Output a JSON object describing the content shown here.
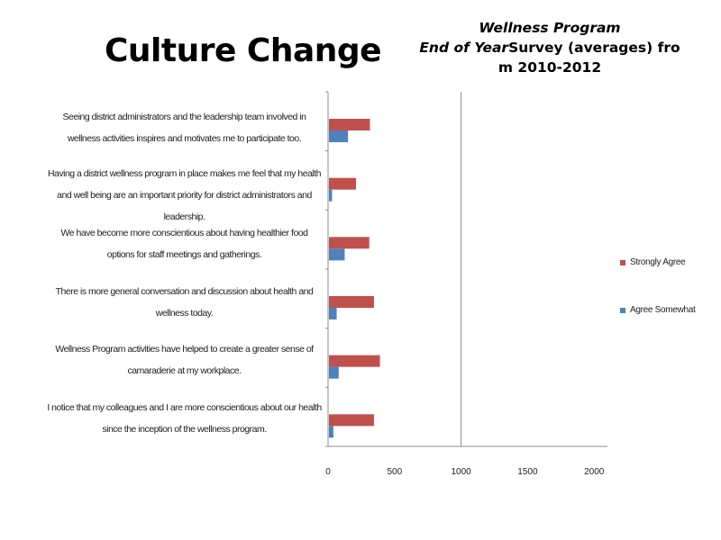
{
  "slide": {
    "title": "Culture Change"
  },
  "chart_data": {
    "type": "bar",
    "orientation": "horizontal",
    "title_lines": [
      {
        "italic": "Wellness Program",
        "regular": ""
      },
      {
        "italic": "End of Year",
        "regular": "Survey (averages) fro"
      },
      {
        "italic": "",
        "regular": "m 2010-2012"
      }
    ],
    "categories": [
      "Seeing district administrators and the leadership team involved in wellness activities inspires and motivates me to participate too.",
      "Having a district wellness program in place makes me feel that my health and well being are an important priority for district administrators and leadership.",
      "We have become more conscientious about having healthier food options for staff meetings and gatherings.",
      "There is more general conversation and discussion about health and wellness today.",
      "Wellness Program activities have helped to create a greater sense of camaraderie at my workplace.",
      "I notice that my colleagues and I are more conscientious about our health since the inception of the wellness program."
    ],
    "series": [
      {
        "name": "Strongly Agree",
        "color": "#c0504d",
        "values": [
          315,
          210,
          310,
          345,
          390,
          345
        ]
      },
      {
        "name": "Agree Somewhat",
        "color": "#4f81bd",
        "values": [
          150,
          30,
          125,
          65,
          80,
          40
        ]
      }
    ],
    "xlim": [
      0,
      2100
    ],
    "xticks": [
      "0",
      "500",
      "1000",
      "1500",
      "2000"
    ],
    "gridlines": [
      1000
    ],
    "legend_position": "right"
  }
}
